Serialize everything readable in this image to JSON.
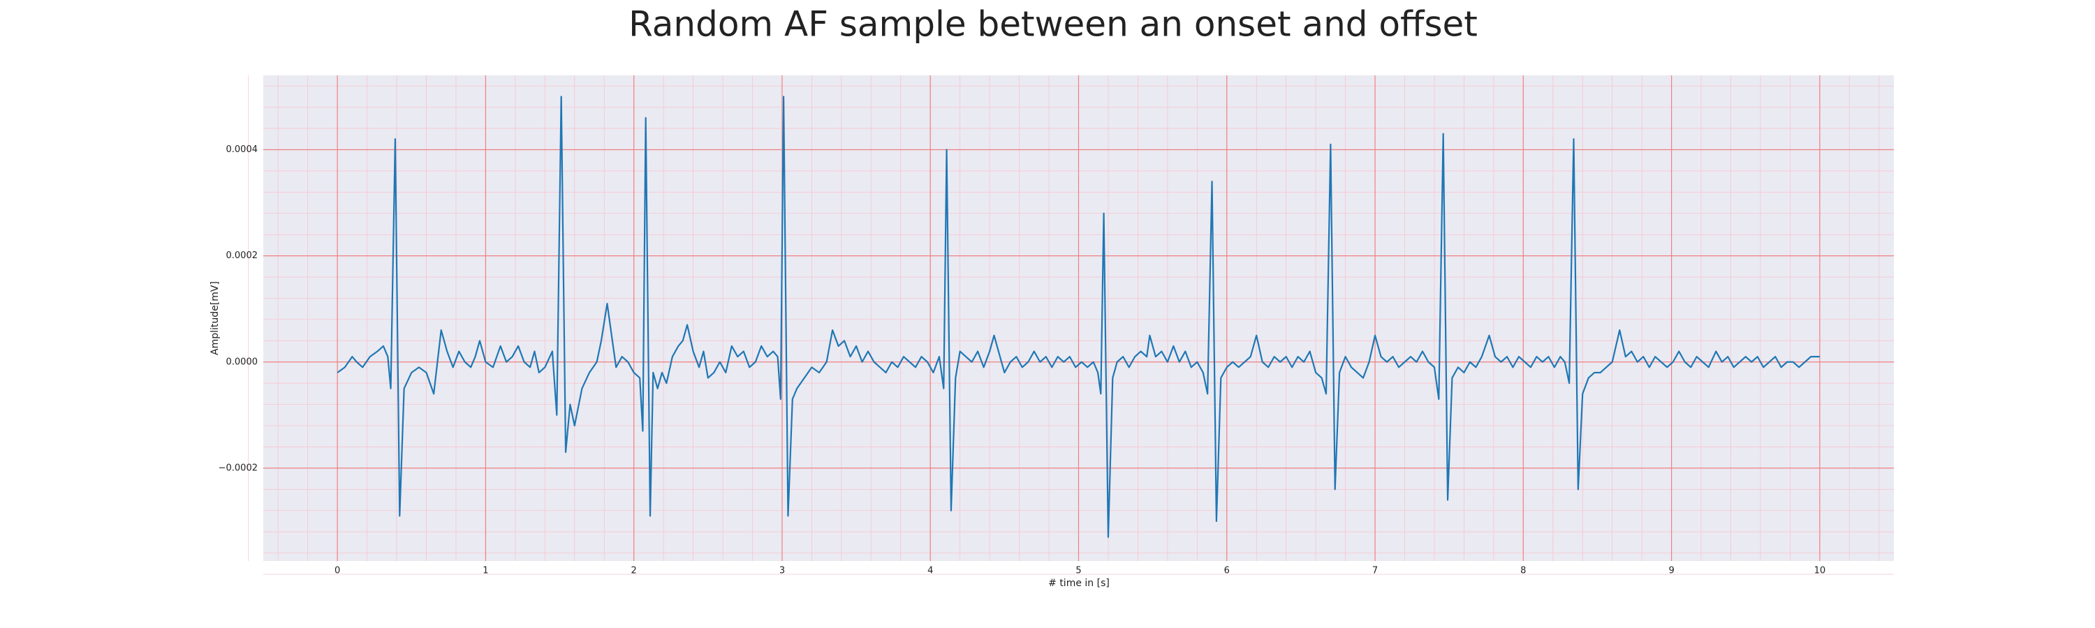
{
  "chart_data": {
    "type": "line",
    "title": "Random AF sample between an onset and offset",
    "xlabel": "# time in [s]",
    "ylabel": "Amplitude[mV]",
    "color": "#1f77b4",
    "background": "#eaeaf2",
    "grid": true,
    "grid_color": "#f08080",
    "minor_grid": true,
    "minor_grid_color": "#f7c5cf",
    "xlim": [
      -0.5,
      10.5
    ],
    "ylim": [
      -0.000375,
      0.00054
    ],
    "xticks": [
      0,
      1,
      2,
      3,
      4,
      5,
      6,
      7,
      8,
      9,
      10
    ],
    "yticks": [
      {
        "value": -0.0002,
        "label": "−0.0002"
      },
      {
        "value": 0,
        "label": "0.0000"
      },
      {
        "value": 0.0002,
        "label": "0.0002"
      },
      {
        "value": 0.0004,
        "label": "0.0004"
      }
    ],
    "x": [
      0.0,
      0.05,
      0.1,
      0.13,
      0.17,
      0.22,
      0.27,
      0.31,
      0.34,
      0.36,
      0.39,
      0.42,
      0.45,
      0.5,
      0.55,
      0.6,
      0.65,
      0.7,
      0.74,
      0.78,
      0.82,
      0.86,
      0.9,
      0.93,
      0.96,
      1.0,
      1.05,
      1.1,
      1.14,
      1.18,
      1.22,
      1.26,
      1.3,
      1.33,
      1.36,
      1.4,
      1.45,
      1.48,
      1.51,
      1.54,
      1.57,
      1.6,
      1.65,
      1.7,
      1.75,
      1.78,
      1.82,
      1.85,
      1.88,
      1.92,
      1.96,
      2.0,
      2.04,
      2.06,
      2.08,
      2.11,
      2.13,
      2.16,
      2.19,
      2.22,
      2.26,
      2.3,
      2.33,
      2.36,
      2.4,
      2.44,
      2.47,
      2.5,
      2.54,
      2.58,
      2.62,
      2.66,
      2.7,
      2.74,
      2.78,
      2.82,
      2.86,
      2.9,
      2.94,
      2.97,
      2.99,
      3.01,
      3.04,
      3.07,
      3.1,
      3.15,
      3.2,
      3.25,
      3.3,
      3.34,
      3.38,
      3.42,
      3.46,
      3.5,
      3.54,
      3.58,
      3.62,
      3.66,
      3.7,
      3.74,
      3.78,
      3.82,
      3.86,
      3.9,
      3.94,
      3.98,
      4.02,
      4.06,
      4.09,
      4.11,
      4.14,
      4.17,
      4.2,
      4.24,
      4.28,
      4.32,
      4.36,
      4.4,
      4.43,
      4.47,
      4.5,
      4.54,
      4.58,
      4.62,
      4.66,
      4.7,
      4.74,
      4.78,
      4.82,
      4.86,
      4.9,
      4.94,
      4.98,
      5.02,
      5.06,
      5.1,
      5.13,
      5.15,
      5.17,
      5.2,
      5.23,
      5.26,
      5.3,
      5.34,
      5.38,
      5.42,
      5.46,
      5.48,
      5.52,
      5.56,
      5.6,
      5.64,
      5.68,
      5.72,
      5.76,
      5.8,
      5.84,
      5.87,
      5.9,
      5.93,
      5.96,
      6.0,
      6.04,
      6.08,
      6.12,
      6.16,
      6.2,
      6.24,
      6.28,
      6.32,
      6.36,
      6.4,
      6.44,
      6.48,
      6.52,
      6.56,
      6.6,
      6.64,
      6.67,
      6.7,
      6.73,
      6.76,
      6.8,
      6.84,
      6.88,
      6.92,
      6.96,
      7.0,
      7.04,
      7.08,
      7.12,
      7.16,
      7.2,
      7.24,
      7.28,
      7.32,
      7.36,
      7.4,
      7.43,
      7.46,
      7.49,
      7.52,
      7.56,
      7.6,
      7.64,
      7.68,
      7.72,
      7.77,
      7.81,
      7.85,
      7.89,
      7.93,
      7.97,
      8.01,
      8.05,
      8.09,
      8.13,
      8.17,
      8.21,
      8.25,
      8.28,
      8.31,
      8.34,
      8.37,
      8.4,
      8.44,
      8.48,
      8.52,
      8.56,
      8.6,
      8.65,
      8.69,
      8.73,
      8.77,
      8.81,
      8.85,
      8.89,
      8.93,
      8.97,
      9.01,
      9.05,
      9.09,
      9.13,
      9.17,
      9.21,
      9.25,
      9.3,
      9.34,
      9.38,
      9.42,
      9.46,
      9.5,
      9.54,
      9.58,
      9.62,
      9.66,
      9.7,
      9.74,
      9.78,
      9.82,
      9.86,
      9.9,
      9.94,
      10.0
    ],
    "values": [
      -2e-05,
      -1e-05,
      1e-05,
      0,
      -1e-05,
      1e-05,
      2e-05,
      3e-05,
      1e-05,
      -5e-05,
      0.00042,
      -0.00029,
      -5e-05,
      -2e-05,
      -1e-05,
      -2e-05,
      -6e-05,
      6e-05,
      2e-05,
      -1e-05,
      2e-05,
      0,
      -1e-05,
      1e-05,
      4e-05,
      0,
      -1e-05,
      3e-05,
      0,
      1e-05,
      3e-05,
      0,
      -1e-05,
      2e-05,
      -2e-05,
      -1e-05,
      2e-05,
      -0.0001,
      0.0005,
      -0.00017,
      -8e-05,
      -0.00012,
      -5e-05,
      -2e-05,
      0,
      4e-05,
      0.00011,
      5e-05,
      -1e-05,
      1e-05,
      0,
      -2e-05,
      -3e-05,
      -0.00013,
      0.00046,
      -0.00029,
      -2e-05,
      -5e-05,
      -2e-05,
      -4e-05,
      1e-05,
      3e-05,
      4e-05,
      7e-05,
      2e-05,
      -1e-05,
      2e-05,
      -3e-05,
      -2e-05,
      0,
      -2e-05,
      3e-05,
      1e-05,
      2e-05,
      -1e-05,
      0,
      3e-05,
      1e-05,
      2e-05,
      1e-05,
      -7e-05,
      0.0005,
      -0.00029,
      -7e-05,
      -5e-05,
      -3e-05,
      -1e-05,
      -2e-05,
      0,
      6e-05,
      3e-05,
      4e-05,
      1e-05,
      3e-05,
      0,
      2e-05,
      0,
      -1e-05,
      -2e-05,
      0,
      -1e-05,
      1e-05,
      0,
      -1e-05,
      1e-05,
      0,
      -2e-05,
      1e-05,
      -5e-05,
      0.0004,
      -0.00028,
      -3e-05,
      2e-05,
      1e-05,
      0,
      2e-05,
      -1e-05,
      2e-05,
      5e-05,
      1e-05,
      -2e-05,
      0,
      1e-05,
      -1e-05,
      0,
      2e-05,
      0,
      1e-05,
      -1e-05,
      1e-05,
      0,
      1e-05,
      -1e-05,
      0,
      -1e-05,
      0,
      -2e-05,
      -6e-05,
      0.00028,
      -0.00033,
      -3e-05,
      0,
      1e-05,
      -1e-05,
      1e-05,
      2e-05,
      1e-05,
      5e-05,
      1e-05,
      2e-05,
      0,
      3e-05,
      0,
      2e-05,
      -1e-05,
      0,
      -2e-05,
      -6e-05,
      0.00034,
      -0.0003,
      -3e-05,
      -1e-05,
      0,
      -1e-05,
      0,
      1e-05,
      5e-05,
      0,
      -1e-05,
      1e-05,
      0,
      1e-05,
      -1e-05,
      1e-05,
      0,
      2e-05,
      -2e-05,
      -3e-05,
      -6e-05,
      0.00041,
      -0.00024,
      -2e-05,
      1e-05,
      -1e-05,
      -2e-05,
      -3e-05,
      0,
      5e-05,
      1e-05,
      0,
      1e-05,
      -1e-05,
      0,
      1e-05,
      0,
      2e-05,
      0,
      -1e-05,
      -7e-05,
      0.00043,
      -0.00026,
      -3e-05,
      -1e-05,
      -2e-05,
      0,
      -1e-05,
      1e-05,
      5e-05,
      1e-05,
      0,
      1e-05,
      -1e-05,
      1e-05,
      0,
      -1e-05,
      1e-05,
      0,
      1e-05,
      -1e-05,
      1e-05,
      0,
      -4e-05,
      0.00042,
      -0.00024,
      -6e-05,
      -3e-05,
      -2e-05,
      -2e-05,
      -1e-05,
      0,
      6e-05,
      1e-05,
      2e-05,
      0,
      1e-05,
      -1e-05,
      1e-05,
      0,
      -1e-05,
      0,
      2e-05,
      0,
      -1e-05,
      1e-05,
      0,
      -1e-05,
      2e-05,
      0,
      1e-05,
      -1e-05,
      0,
      1e-05,
      0,
      1e-05,
      -1e-05,
      0,
      1e-05,
      -1e-05,
      0,
      0,
      -1e-05,
      0,
      1e-05,
      1e-05
    ]
  }
}
